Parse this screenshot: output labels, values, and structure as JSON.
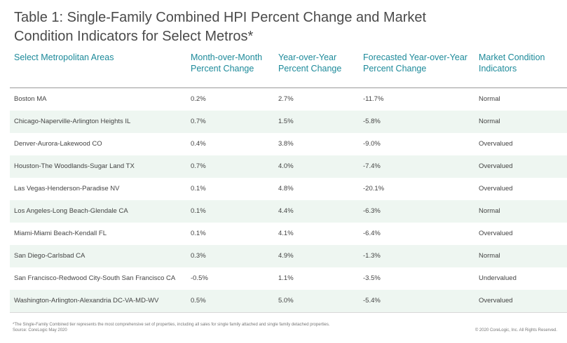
{
  "header": {
    "title": "Table 1: Single-Family Combined HPI Percent Change and Market Condition Indicators for Select Metros*"
  },
  "table": {
    "columns": [
      "Select Metropolitan Areas",
      "Month-over-Month Percent Change",
      "Year-over-Year Percent Change",
      "Forecasted Year-over-Year Percent Change",
      "Market Condition Indicators"
    ],
    "rows": [
      [
        "Boston MA",
        "0.2%",
        "2.7%",
        "-11.7%",
        "Normal"
      ],
      [
        "Chicago-Naperville-Arlington Heights IL",
        "0.7%",
        "1.5%",
        "-5.8%",
        "Normal"
      ],
      [
        "Denver-Aurora-Lakewood CO",
        "0.4%",
        "3.8%",
        "-9.0%",
        "Overvalued"
      ],
      [
        "Houston-The Woodlands-Sugar Land TX",
        "0.7%",
        "4.0%",
        "-7.4%",
        "Overvalued"
      ],
      [
        "Las Vegas-Henderson-Paradise NV",
        "0.1%",
        "4.8%",
        "-20.1%",
        "Overvalued"
      ],
      [
        "Los Angeles-Long Beach-Glendale CA",
        "0.1%",
        "4.4%",
        "-6.3%",
        "Normal"
      ],
      [
        "Miami-Miami Beach-Kendall FL",
        "0.1%",
        "4.1%",
        "-6.4%",
        "Overvalued"
      ],
      [
        "San Diego-Carlsbad CA",
        "0.3%",
        "4.9%",
        "-1.3%",
        "Normal"
      ],
      [
        "San Francisco-Redwood City-South San Francisco CA",
        "-0.5%",
        "1.1%",
        "-3.5%",
        "Undervalued"
      ],
      [
        "Washington-Arlington-Alexandria DC-VA-MD-WV",
        "0.5%",
        "5.0%",
        "-5.4%",
        "Overvalued"
      ]
    ]
  },
  "footer": {
    "note": "*The Single-Family Combined tier represents the most comprehensive set of properties, including all sales for single family attached and single family detached properties.",
    "source": "Source: CoreLogic May 2020",
    "copyright": "© 2020 CoreLogic, Inc. All Rights Reserved."
  }
}
